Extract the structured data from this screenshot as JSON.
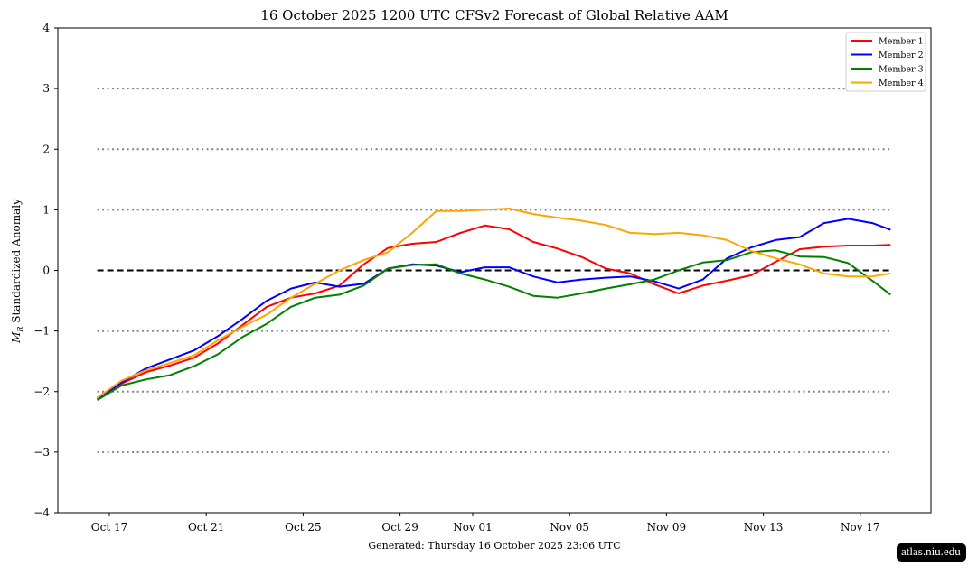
{
  "chart_data": {
    "type": "line",
    "title": "16  October  2025 1200 UTC   CFSv2 Forecast of Global Relative AAM",
    "ylabel": "M_R Standardized Anomaly",
    "ylabel_main": "M",
    "ylabel_sub": "R",
    "ylabel_rest": " Standardized Anomaly",
    "xlabel": "",
    "ylim": [
      -4,
      4
    ],
    "yticks": [
      -4,
      -3,
      -2,
      -1,
      0,
      1,
      2,
      3,
      4
    ],
    "ytick_labels": [
      "−4",
      "−3",
      "−2",
      "−1",
      "0",
      "1",
      "2",
      "3",
      "4"
    ],
    "xticks": [
      "2025-10-17",
      "2025-10-21",
      "2025-10-25",
      "2025-10-29",
      "2025-11-01",
      "2025-11-05",
      "2025-11-09",
      "2025-11-13",
      "2025-11-17"
    ],
    "xtick_labels": [
      "Oct 17",
      "Oct 21",
      "Oct 25",
      "Oct 29",
      "Nov 01",
      "Nov 05",
      "Nov 09",
      "Nov 13",
      "Nov 17"
    ],
    "reference_lines": {
      "dashed": [
        0
      ],
      "dotted": [
        -3,
        -2,
        -1,
        1,
        2,
        3
      ]
    },
    "legend_position": "top-right",
    "x": [
      "2025-10-16T12",
      "2025-10-17T12",
      "2025-10-18T12",
      "2025-10-19T12",
      "2025-10-20T12",
      "2025-10-21T12",
      "2025-10-22T12",
      "2025-10-23T12",
      "2025-10-24T12",
      "2025-10-25T12",
      "2025-10-26T12",
      "2025-10-27T12",
      "2025-10-28T12",
      "2025-10-29T12",
      "2025-10-30T12",
      "2025-10-31T12",
      "2025-11-01T12",
      "2025-11-02T12",
      "2025-11-03T12",
      "2025-11-04T12",
      "2025-11-05T12",
      "2025-11-06T12",
      "2025-11-07T12",
      "2025-11-08T12",
      "2025-11-09T12",
      "2025-11-10T12",
      "2025-11-11T12",
      "2025-11-12T12",
      "2025-11-13T12",
      "2025-11-14T12",
      "2025-11-15T12",
      "2025-11-16T12",
      "2025-11-17T12",
      "2025-11-18T06"
    ],
    "series": [
      {
        "name": "Member 1",
        "color": "#ff0000",
        "values": [
          -2.1,
          -1.87,
          -1.68,
          -1.57,
          -1.44,
          -1.2,
          -0.9,
          -0.6,
          -0.45,
          -0.38,
          -0.25,
          0.1,
          0.37,
          0.44,
          0.47,
          0.62,
          0.74,
          0.68,
          0.47,
          0.36,
          0.22,
          0.03,
          -0.05,
          -0.23,
          -0.38,
          -0.25,
          -0.17,
          -0.08,
          0.14,
          0.35,
          0.39,
          0.41,
          0.41,
          0.42
        ]
      },
      {
        "name": "Member 2",
        "color": "#0000ff",
        "values": [
          -2.12,
          -1.85,
          -1.62,
          -1.47,
          -1.32,
          -1.08,
          -0.8,
          -0.5,
          -0.3,
          -0.2,
          -0.27,
          -0.22,
          0.03,
          0.1,
          0.08,
          -0.03,
          0.05,
          0.05,
          -0.1,
          -0.2,
          -0.15,
          -0.12,
          -0.1,
          -0.18,
          -0.3,
          -0.15,
          0.2,
          0.38,
          0.5,
          0.55,
          0.78,
          0.85,
          0.78,
          0.67
        ]
      },
      {
        "name": "Member 3",
        "color": "#008000",
        "values": [
          -2.14,
          -1.9,
          -1.8,
          -1.73,
          -1.58,
          -1.38,
          -1.1,
          -0.88,
          -0.6,
          -0.45,
          -0.4,
          -0.25,
          0.03,
          0.09,
          0.1,
          -0.05,
          -0.15,
          -0.27,
          -0.42,
          -0.45,
          -0.38,
          -0.3,
          -0.23,
          -0.15,
          0.0,
          0.13,
          0.17,
          0.3,
          0.33,
          0.23,
          0.22,
          0.12,
          -0.17,
          -0.4
        ]
      },
      {
        "name": "Member 4",
        "color": "#ffa500",
        "values": [
          -2.1,
          -1.82,
          -1.65,
          -1.53,
          -1.4,
          -1.15,
          -0.93,
          -0.73,
          -0.45,
          -0.22,
          0.0,
          0.17,
          0.3,
          0.62,
          0.98,
          0.98,
          1.0,
          1.02,
          0.93,
          0.87,
          0.82,
          0.75,
          0.62,
          0.6,
          0.62,
          0.58,
          0.5,
          0.32,
          0.2,
          0.1,
          -0.05,
          -0.1,
          -0.1,
          -0.05
        ]
      }
    ]
  },
  "footer": {
    "generated": "Generated: Thursday  16  October  2025  23:06 UTC"
  },
  "badge": {
    "text": "atlas.niu.edu"
  }
}
